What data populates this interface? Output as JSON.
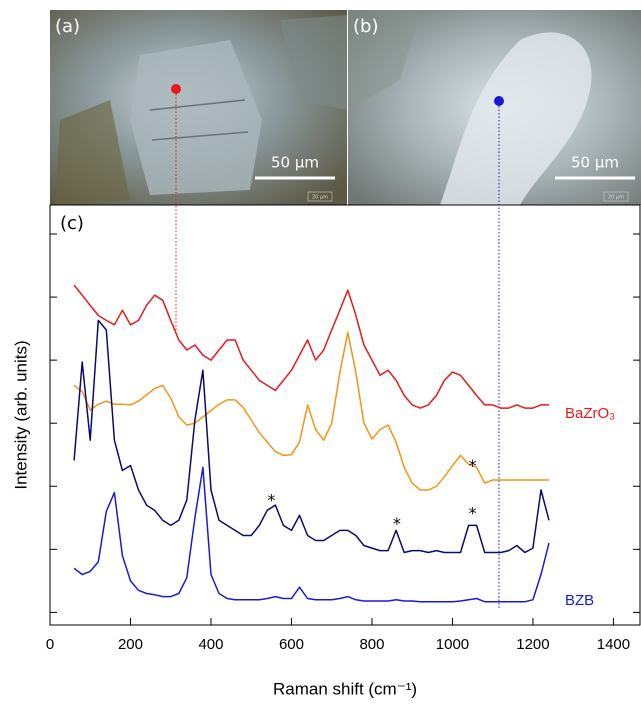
{
  "panels": [
    {
      "label": "(a)",
      "scale_bar": "50 µm",
      "inset": "20 µm"
    },
    {
      "label": "(b)",
      "scale_bar": "50 µm",
      "inset": "20 µm"
    }
  ],
  "chart_data": {
    "type": "line",
    "panel_label": "(c)",
    "x_label": "Raman shift (cm⁻¹)",
    "y_label": "Intensity (arb. units)",
    "xlim": [
      0,
      1466
    ],
    "ylim": [
      -0.2,
      6.46
    ],
    "xticks": [
      0,
      200,
      400,
      600,
      800,
      1000,
      1200,
      1400
    ],
    "yticks": [
      0,
      1,
      2,
      3,
      4,
      5,
      6
    ],
    "x": [
      60,
      80,
      100,
      120,
      140,
      160,
      180,
      200,
      220,
      240,
      260,
      280,
      300,
      320,
      340,
      360,
      380,
      400,
      420,
      440,
      460,
      480,
      500,
      520,
      540,
      560,
      580,
      600,
      620,
      640,
      660,
      680,
      700,
      720,
      740,
      760,
      780,
      800,
      820,
      840,
      860,
      880,
      900,
      920,
      940,
      960,
      980,
      1000,
      1020,
      1040,
      1060,
      1080,
      1100,
      1120,
      1140,
      1160,
      1180,
      1200,
      1220,
      1240
    ],
    "series": [
      {
        "name": "BaZrO₃",
        "color": "#e8191c",
        "values": [
          5.19,
          5.03,
          4.87,
          4.71,
          4.63,
          4.56,
          4.79,
          4.56,
          4.63,
          4.87,
          5.03,
          4.95,
          4.63,
          4.32,
          4.16,
          4.24,
          4.08,
          4.0,
          4.16,
          4.32,
          4.32,
          4.0,
          3.84,
          3.68,
          3.6,
          3.52,
          3.68,
          3.84,
          4.08,
          4.32,
          4.0,
          4.16,
          4.48,
          4.79,
          5.11,
          4.71,
          4.24,
          4.0,
          3.76,
          3.84,
          3.68,
          3.44,
          3.29,
          3.24,
          3.29,
          3.44,
          3.68,
          3.81,
          3.76,
          3.6,
          3.44,
          3.29,
          3.29,
          3.24,
          3.24,
          3.29,
          3.24,
          3.24,
          3.29,
          3.29
        ]
      },
      {
        "color": "#f39419",
        "values": [
          3.6,
          3.5,
          3.21,
          3.3,
          3.35,
          3.3,
          3.3,
          3.29,
          3.35,
          3.45,
          3.55,
          3.6,
          3.4,
          3.1,
          2.97,
          3.0,
          3.1,
          3.2,
          3.3,
          3.37,
          3.37,
          3.25,
          3.05,
          2.85,
          2.7,
          2.55,
          2.49,
          2.5,
          2.7,
          3.29,
          2.9,
          2.73,
          3.0,
          3.8,
          4.44,
          3.8,
          3.0,
          2.75,
          2.9,
          2.97,
          2.7,
          2.3,
          2.05,
          1.94,
          1.94,
          2.0,
          2.15,
          2.33,
          2.49,
          2.35,
          2.3,
          2.05,
          2.1,
          2.1,
          2.1,
          2.1,
          2.1,
          2.1,
          2.1,
          2.1
        ]
      },
      {
        "color": "#0b0b6e",
        "values": [
          2.41,
          3.97,
          2.73,
          4.63,
          4.48,
          2.73,
          2.25,
          2.33,
          1.94,
          1.7,
          1.62,
          1.46,
          1.38,
          1.46,
          1.78,
          3.05,
          3.84,
          1.94,
          1.46,
          1.38,
          1.3,
          1.22,
          1.22,
          1.38,
          1.62,
          1.7,
          1.38,
          1.3,
          1.54,
          1.22,
          1.14,
          1.14,
          1.22,
          1.3,
          1.3,
          1.22,
          1.06,
          1.02,
          0.98,
          0.98,
          1.3,
          0.95,
          0.98,
          0.98,
          0.95,
          0.98,
          0.95,
          0.95,
          0.95,
          1.38,
          1.38,
          0.95,
          0.95,
          0.95,
          0.98,
          1.06,
          0.95,
          1.02,
          1.94,
          1.46
        ]
      },
      {
        "name": "BZB",
        "color": "#1a1ad6",
        "values": [
          0.7,
          0.6,
          0.65,
          0.8,
          1.6,
          1.9,
          0.9,
          0.5,
          0.35,
          0.3,
          0.28,
          0.25,
          0.25,
          0.3,
          0.55,
          1.5,
          2.3,
          0.6,
          0.3,
          0.22,
          0.2,
          0.2,
          0.2,
          0.2,
          0.22,
          0.25,
          0.22,
          0.22,
          0.4,
          0.22,
          0.2,
          0.2,
          0.2,
          0.22,
          0.25,
          0.2,
          0.18,
          0.18,
          0.18,
          0.18,
          0.2,
          0.18,
          0.18,
          0.17,
          0.17,
          0.17,
          0.17,
          0.17,
          0.18,
          0.2,
          0.22,
          0.17,
          0.17,
          0.17,
          0.17,
          0.17,
          0.17,
          0.2,
          0.6,
          1.1
        ]
      }
    ],
    "annotations": [
      {
        "text": "*",
        "x": 550,
        "y": 1.83
      },
      {
        "text": "*",
        "x": 862,
        "y": 1.46
      },
      {
        "text": "*",
        "x": 1050,
        "y": 1.62
      },
      {
        "text": "*",
        "x": 1050,
        "y": 2.38
      }
    ]
  }
}
